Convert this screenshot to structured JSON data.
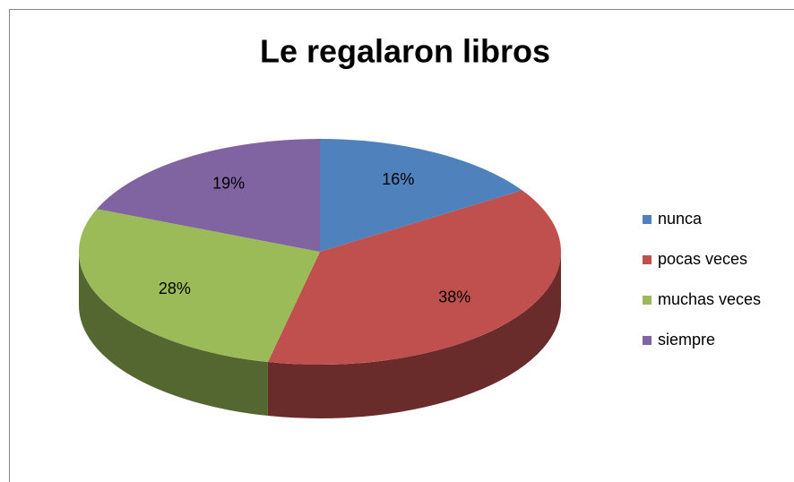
{
  "chart_data": {
    "type": "pie",
    "title": "Le regalaron libros",
    "categories": [
      "nunca",
      "pocas veces",
      "muchas veces",
      "siempre"
    ],
    "values": [
      16,
      38,
      28,
      19
    ],
    "value_labels": [
      "16%",
      "38%",
      "28%",
      "19%"
    ],
    "colors": [
      "#4f81bd",
      "#c0504d",
      "#9bbb59",
      "#8064a2"
    ],
    "legend": "right"
  }
}
